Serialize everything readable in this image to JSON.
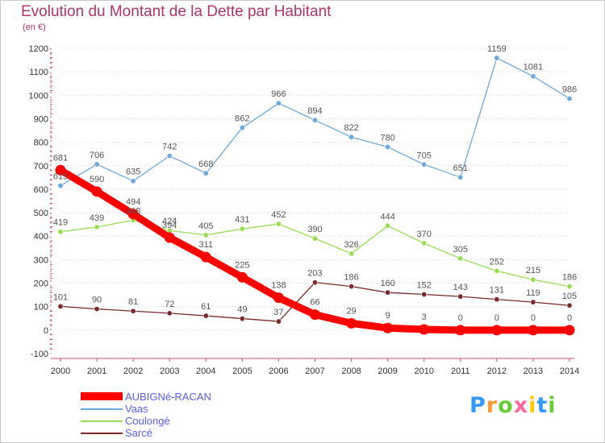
{
  "title": "Evolution du Montant de la Dette par Habitant",
  "unit": "(en €)",
  "logo": "Proxiti",
  "colors": {
    "title": "#b0336b",
    "axis": "#c44a7c",
    "grid": "#d0d0d0"
  },
  "chart_data": {
    "type": "line",
    "title": "Evolution du Montant de la Dette par Habitant",
    "ylabel": "(en €)",
    "xlabel": "",
    "x": [
      "2000",
      "2001",
      "2002",
      "2003",
      "2004",
      "2005",
      "2006",
      "2007",
      "2008",
      "2009",
      "2010",
      "2011",
      "2012",
      "2013",
      "2014"
    ],
    "ylim": [
      -100,
      1200
    ],
    "yticks": [
      "-100",
      "0",
      "100",
      "200",
      "300",
      "400",
      "500",
      "600",
      "700",
      "800",
      "900",
      "1000",
      "1100",
      "1200"
    ],
    "grid": "horizontal dotted",
    "legend_position": "bottom-left",
    "series": [
      {
        "name": "AUBIGNé-RACAN",
        "color": "#ff0000",
        "label_color": "#555555",
        "values": [
          681,
          590,
          494,
          394,
          311,
          225,
          138,
          66,
          29,
          9,
          3,
          0,
          0,
          0,
          0
        ],
        "labels": [
          "681",
          "590",
          "494",
          "394",
          "311",
          "225",
          "138",
          "66",
          "29",
          "9",
          "3",
          "0",
          "0",
          "0",
          "0"
        ]
      },
      {
        "name": "Vaas",
        "color": "#6fa8dc",
        "values": [
          615,
          706,
          635,
          742,
          668,
          862,
          966,
          894,
          822,
          780,
          705,
          651,
          1159,
          1081,
          986
        ],
        "labels": [
          "615",
          "706",
          "635",
          "742",
          "668",
          "862",
          "966",
          "894",
          "822",
          "780",
          "705",
          "651",
          "1159",
          "1081",
          "986"
        ]
      },
      {
        "name": "Coulongé",
        "color": "#99dd55",
        "values": [
          419,
          439,
          468,
          424,
          405,
          431,
          452,
          390,
          326,
          444,
          370,
          305,
          252,
          215,
          186
        ],
        "labels": [
          "419",
          "439",
          "468",
          "424",
          "405",
          "431",
          "452",
          "390",
          "326",
          "444",
          "370",
          "305",
          "252",
          "215",
          "186"
        ]
      },
      {
        "name": "Sarcé",
        "color": "#7a2a2a",
        "values": [
          101,
          90,
          81,
          72,
          61,
          49,
          37,
          203,
          186,
          160,
          152,
          143,
          131,
          119,
          105
        ],
        "labels": [
          "101",
          "90",
          "81",
          "72",
          "61",
          "49",
          "37",
          "203",
          "186",
          "160",
          "152",
          "143",
          "131",
          "119",
          "105"
        ]
      }
    ]
  }
}
